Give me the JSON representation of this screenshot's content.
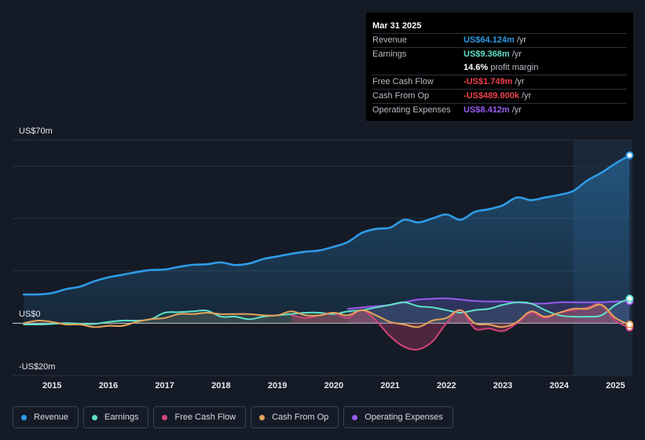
{
  "colors": {
    "revenue": "#2f9be8",
    "earnings": "#5fe0c8",
    "free_cash_flow": "#d4437a",
    "cash_from_op": "#e3a35b",
    "operating_expenses": "#9a5bf0",
    "negative": "#f0414d"
  },
  "tooltip": {
    "date": "Mar 31 2025",
    "rows": [
      {
        "label": "Revenue",
        "value": "US$64.124m",
        "unit": "/yr"
      },
      {
        "label": "Earnings",
        "value": "US$9.368m",
        "unit": "/yr"
      },
      {
        "label": "",
        "value": "14.6%",
        "unit": "profit margin"
      },
      {
        "label": "Free Cash Flow",
        "value": "-US$1.749m",
        "unit": "/yr"
      },
      {
        "label": "Cash From Op",
        "value": "-US$489.000k",
        "unit": "/yr"
      },
      {
        "label": "Operating Expenses",
        "value": "US$8.412m",
        "unit": "/yr"
      }
    ]
  },
  "legend": [
    {
      "label": "Revenue",
      "color_key": "revenue"
    },
    {
      "label": "Earnings",
      "color_key": "earnings"
    },
    {
      "label": "Free Cash Flow",
      "color_key": "free_cash_flow"
    },
    {
      "label": "Cash From Op",
      "color_key": "cash_from_op"
    },
    {
      "label": "Operating Expenses",
      "color_key": "operating_expenses"
    }
  ],
  "chart_data": {
    "type": "line",
    "title": "",
    "xlabel": "",
    "ylabel": "",
    "y_label_top": "US$70m",
    "y_label_zero": "US$0",
    "y_label_bottom": "-US$20m",
    "ylim": [
      -20,
      70
    ],
    "xlim": [
      2014.3,
      2025.3
    ],
    "x_ticks": [
      {
        "value": 2015,
        "label": "2015"
      },
      {
        "value": 2016,
        "label": "2016"
      },
      {
        "value": 2017,
        "label": "2017"
      },
      {
        "value": 2018,
        "label": "2018"
      },
      {
        "value": 2019,
        "label": "2019"
      },
      {
        "value": 2020,
        "label": "2020"
      },
      {
        "value": 2021,
        "label": "2021"
      },
      {
        "value": 2022,
        "label": "2022"
      },
      {
        "value": 2023,
        "label": "2023"
      },
      {
        "value": 2024,
        "label": "2024"
      },
      {
        "value": 2025,
        "label": "2025"
      }
    ],
    "forecast_start": 2024.25,
    "series": [
      {
        "name": "Revenue",
        "key": "revenue",
        "x": [
          2014.5,
          2014.75,
          2015.0,
          2015.25,
          2015.5,
          2015.75,
          2016.0,
          2016.25,
          2016.5,
          2016.75,
          2017.0,
          2017.25,
          2017.5,
          2017.75,
          2018.0,
          2018.25,
          2018.5,
          2018.75,
          2019.0,
          2019.25,
          2019.5,
          2019.75,
          2020.0,
          2020.25,
          2020.5,
          2020.75,
          2021.0,
          2021.25,
          2021.5,
          2021.75,
          2022.0,
          2022.25,
          2022.5,
          2022.75,
          2023.0,
          2023.25,
          2023.5,
          2023.75,
          2024.0,
          2024.25,
          2024.5,
          2024.75,
          2025.0,
          2025.25
        ],
        "y": [
          11,
          11,
          11.5,
          13,
          14,
          16,
          17.5,
          18.5,
          19.5,
          20.3,
          20.5,
          21.5,
          22.3,
          22.5,
          23.2,
          22.2,
          22.8,
          24.5,
          25.5,
          26.5,
          27.3,
          27.8,
          29.2,
          31,
          34.5,
          36,
          36.5,
          39.5,
          38.5,
          40,
          41.5,
          39.5,
          42.5,
          43.5,
          45,
          48,
          47,
          48,
          49,
          50.5,
          54.5,
          57.5,
          61,
          64.1
        ]
      },
      {
        "name": "Earnings",
        "key": "earnings",
        "x": [
          2014.5,
          2014.75,
          2015.0,
          2015.25,
          2015.5,
          2015.75,
          2016.0,
          2016.25,
          2016.5,
          2016.75,
          2017.0,
          2017.25,
          2017.5,
          2017.75,
          2018.0,
          2018.25,
          2018.5,
          2018.75,
          2019.0,
          2019.25,
          2019.5,
          2019.75,
          2020.0,
          2020.25,
          2020.5,
          2020.75,
          2021.0,
          2021.25,
          2021.5,
          2021.75,
          2022.0,
          2022.25,
          2022.5,
          2022.75,
          2023.0,
          2023.25,
          2023.5,
          2023.75,
          2024.0,
          2024.25,
          2024.5,
          2024.75,
          2025.0,
          2025.25
        ],
        "y": [
          -0.5,
          -0.5,
          -0.3,
          0,
          -0.2,
          -0.3,
          0.5,
          1,
          1,
          1.5,
          4,
          4.2,
          4.5,
          4.8,
          2.5,
          2.5,
          1.5,
          2.5,
          3,
          3.5,
          4,
          4,
          3.5,
          4.5,
          5,
          6,
          7,
          8,
          6.5,
          6,
          5,
          4,
          5,
          5.5,
          7,
          8,
          7.5,
          5,
          3,
          2.5,
          2.5,
          3,
          7,
          9.4
        ]
      },
      {
        "name": "Free Cash Flow",
        "key": "free_cash_flow",
        "x": [
          2019.25,
          2019.5,
          2019.75,
          2020.0,
          2020.25,
          2020.5,
          2020.75,
          2021.0,
          2021.25,
          2021.5,
          2021.75,
          2022.0,
          2022.25,
          2022.5,
          2022.75,
          2023.0,
          2023.25,
          2023.5,
          2023.75,
          2024.0,
          2024.25,
          2024.5,
          2024.75,
          2025.0,
          2025.25
        ],
        "y": [
          3,
          2,
          3,
          4,
          2,
          5,
          1,
          -5,
          -9,
          -10,
          -7,
          0,
          5,
          -2,
          -2,
          -3,
          0,
          4,
          2,
          4,
          5,
          6,
          7,
          1,
          -1.7
        ]
      },
      {
        "name": "Cash From Op",
        "key": "cash_from_op",
        "x": [
          2014.5,
          2014.75,
          2015.0,
          2015.25,
          2015.5,
          2015.75,
          2016.0,
          2016.25,
          2016.5,
          2016.75,
          2017.0,
          2017.25,
          2017.5,
          2017.75,
          2018.0,
          2018.25,
          2018.5,
          2018.75,
          2019.0,
          2019.25,
          2019.5,
          2019.75,
          2020.0,
          2020.25,
          2020.5,
          2020.75,
          2021.0,
          2021.25,
          2021.5,
          2021.75,
          2022.0,
          2022.25,
          2022.5,
          2022.75,
          2023.0,
          2023.25,
          2023.5,
          2023.75,
          2024.0,
          2024.25,
          2024.5,
          2024.75,
          2025.0,
          2025.25
        ],
        "y": [
          0,
          1,
          0.5,
          -0.5,
          -0.5,
          -1.5,
          -1,
          -1,
          0.5,
          1.5,
          2,
          3.5,
          3.5,
          4,
          3.5,
          3.5,
          3.5,
          3,
          3,
          4.5,
          3,
          3,
          4,
          3,
          5,
          3,
          0.5,
          -0.5,
          -1.5,
          1,
          2,
          5,
          0,
          -0.5,
          -1.5,
          0.5,
          4.5,
          2.5,
          4,
          5.5,
          5.5,
          7,
          2,
          -0.5
        ]
      },
      {
        "name": "Operating Expenses",
        "key": "operating_expenses",
        "x": [
          2020.25,
          2020.5,
          2020.75,
          2021.0,
          2021.25,
          2021.5,
          2021.75,
          2022.0,
          2022.25,
          2022.5,
          2022.75,
          2023.0,
          2023.25,
          2023.5,
          2023.75,
          2024.0,
          2024.25,
          2024.5,
          2024.75,
          2025.0,
          2025.25
        ],
        "y": [
          5.5,
          6,
          6.5,
          7,
          8,
          9,
          9.3,
          9.5,
          9,
          8.5,
          8.3,
          8.3,
          8,
          7.5,
          7.5,
          8,
          8,
          8,
          8,
          8.3,
          8.4
        ]
      }
    ]
  }
}
